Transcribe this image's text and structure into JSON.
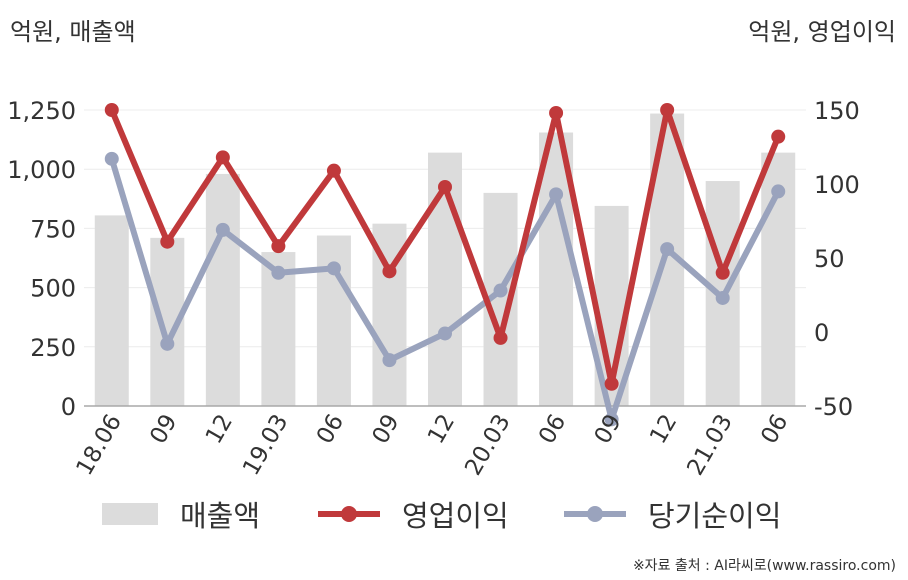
{
  "units": {
    "left": "억원, 매출액",
    "right": "억원, 영업이익"
  },
  "chart_data": {
    "type": "bar+line",
    "categories": [
      "18.06",
      "09",
      "12",
      "19.03",
      "06",
      "09",
      "12",
      "20.03",
      "06",
      "09",
      "12",
      "21.03",
      "06"
    ],
    "series": [
      {
        "name": "매출액",
        "type": "bar",
        "axis": "left",
        "color": "#dcdcdc",
        "values": [
          805,
          710,
          980,
          650,
          720,
          770,
          1070,
          900,
          1155,
          845,
          1235,
          950,
          1070
        ]
      },
      {
        "name": "영업이익",
        "type": "line",
        "axis": "right",
        "color": "#c0393b",
        "values": [
          150,
          61,
          118,
          58,
          109,
          41,
          98,
          -4,
          148,
          -35,
          150,
          40,
          132
        ]
      },
      {
        "name": "당기순이익",
        "type": "line",
        "axis": "right",
        "color": "#9aa3bd",
        "values": [
          117,
          -8,
          69,
          40,
          43,
          -19,
          -1,
          28,
          93,
          -59,
          56,
          23,
          95
        ]
      }
    ],
    "y_left": {
      "ticks": [
        "1,250",
        "1,000",
        "750",
        "500",
        "250",
        "0"
      ],
      "ylim": [
        0,
        1250
      ]
    },
    "y_right": {
      "ticks": [
        "150",
        "100",
        "50",
        "0",
        "-50"
      ],
      "ylim": [
        -50,
        150
      ]
    },
    "grid": true,
    "legend_position": "bottom"
  },
  "source": "※자료 출처 : AI라씨로(www.rassiro.com)"
}
